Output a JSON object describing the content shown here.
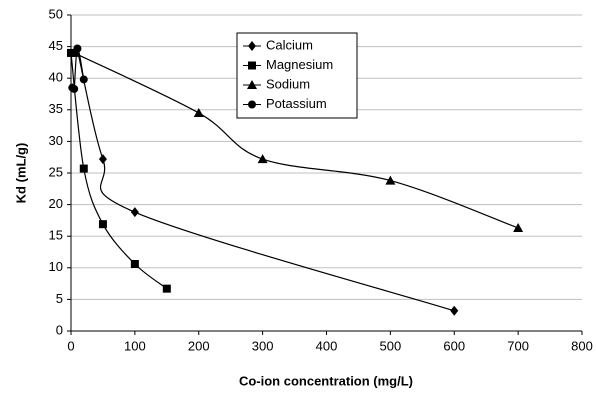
{
  "chart_data": {
    "type": "line",
    "smooth": true,
    "xlabel": "Co-ion concentration (mg/L)",
    "ylabel": "Kd (mL/g)",
    "xlim": [
      0,
      800
    ],
    "xticks": [
      0,
      100,
      200,
      300,
      400,
      500,
      600,
      700,
      800
    ],
    "ylim": [
      0,
      50
    ],
    "yticks": [
      0,
      5,
      10,
      15,
      20,
      25,
      30,
      35,
      40,
      45,
      50
    ],
    "grid": true,
    "legend": "top center",
    "series": [
      {
        "name": "Calcium",
        "color": "#000000",
        "marker": "diamond",
        "x": [
          10,
          50,
          100,
          600
        ],
        "values": [
          44.5,
          27.2,
          18.8,
          3.2
        ]
      },
      {
        "name": "Magnesium",
        "color": "#000000",
        "marker": "square",
        "x": [
          0,
          20,
          50,
          100,
          150
        ],
        "values": [
          44,
          25.7,
          16.9,
          10.6,
          6.7
        ]
      },
      {
        "name": "Sodium",
        "color": "#000000",
        "marker": "triangle",
        "x": [
          5,
          200,
          300,
          500,
          700
        ],
        "values": [
          44,
          34.5,
          27.2,
          23.8,
          16.3
        ]
      },
      {
        "name": "Potassium",
        "color": "#000000",
        "marker": "circle",
        "x": [
          2,
          5,
          10,
          20
        ],
        "values": [
          38.5,
          38.3,
          44.7,
          39.8
        ]
      }
    ]
  }
}
